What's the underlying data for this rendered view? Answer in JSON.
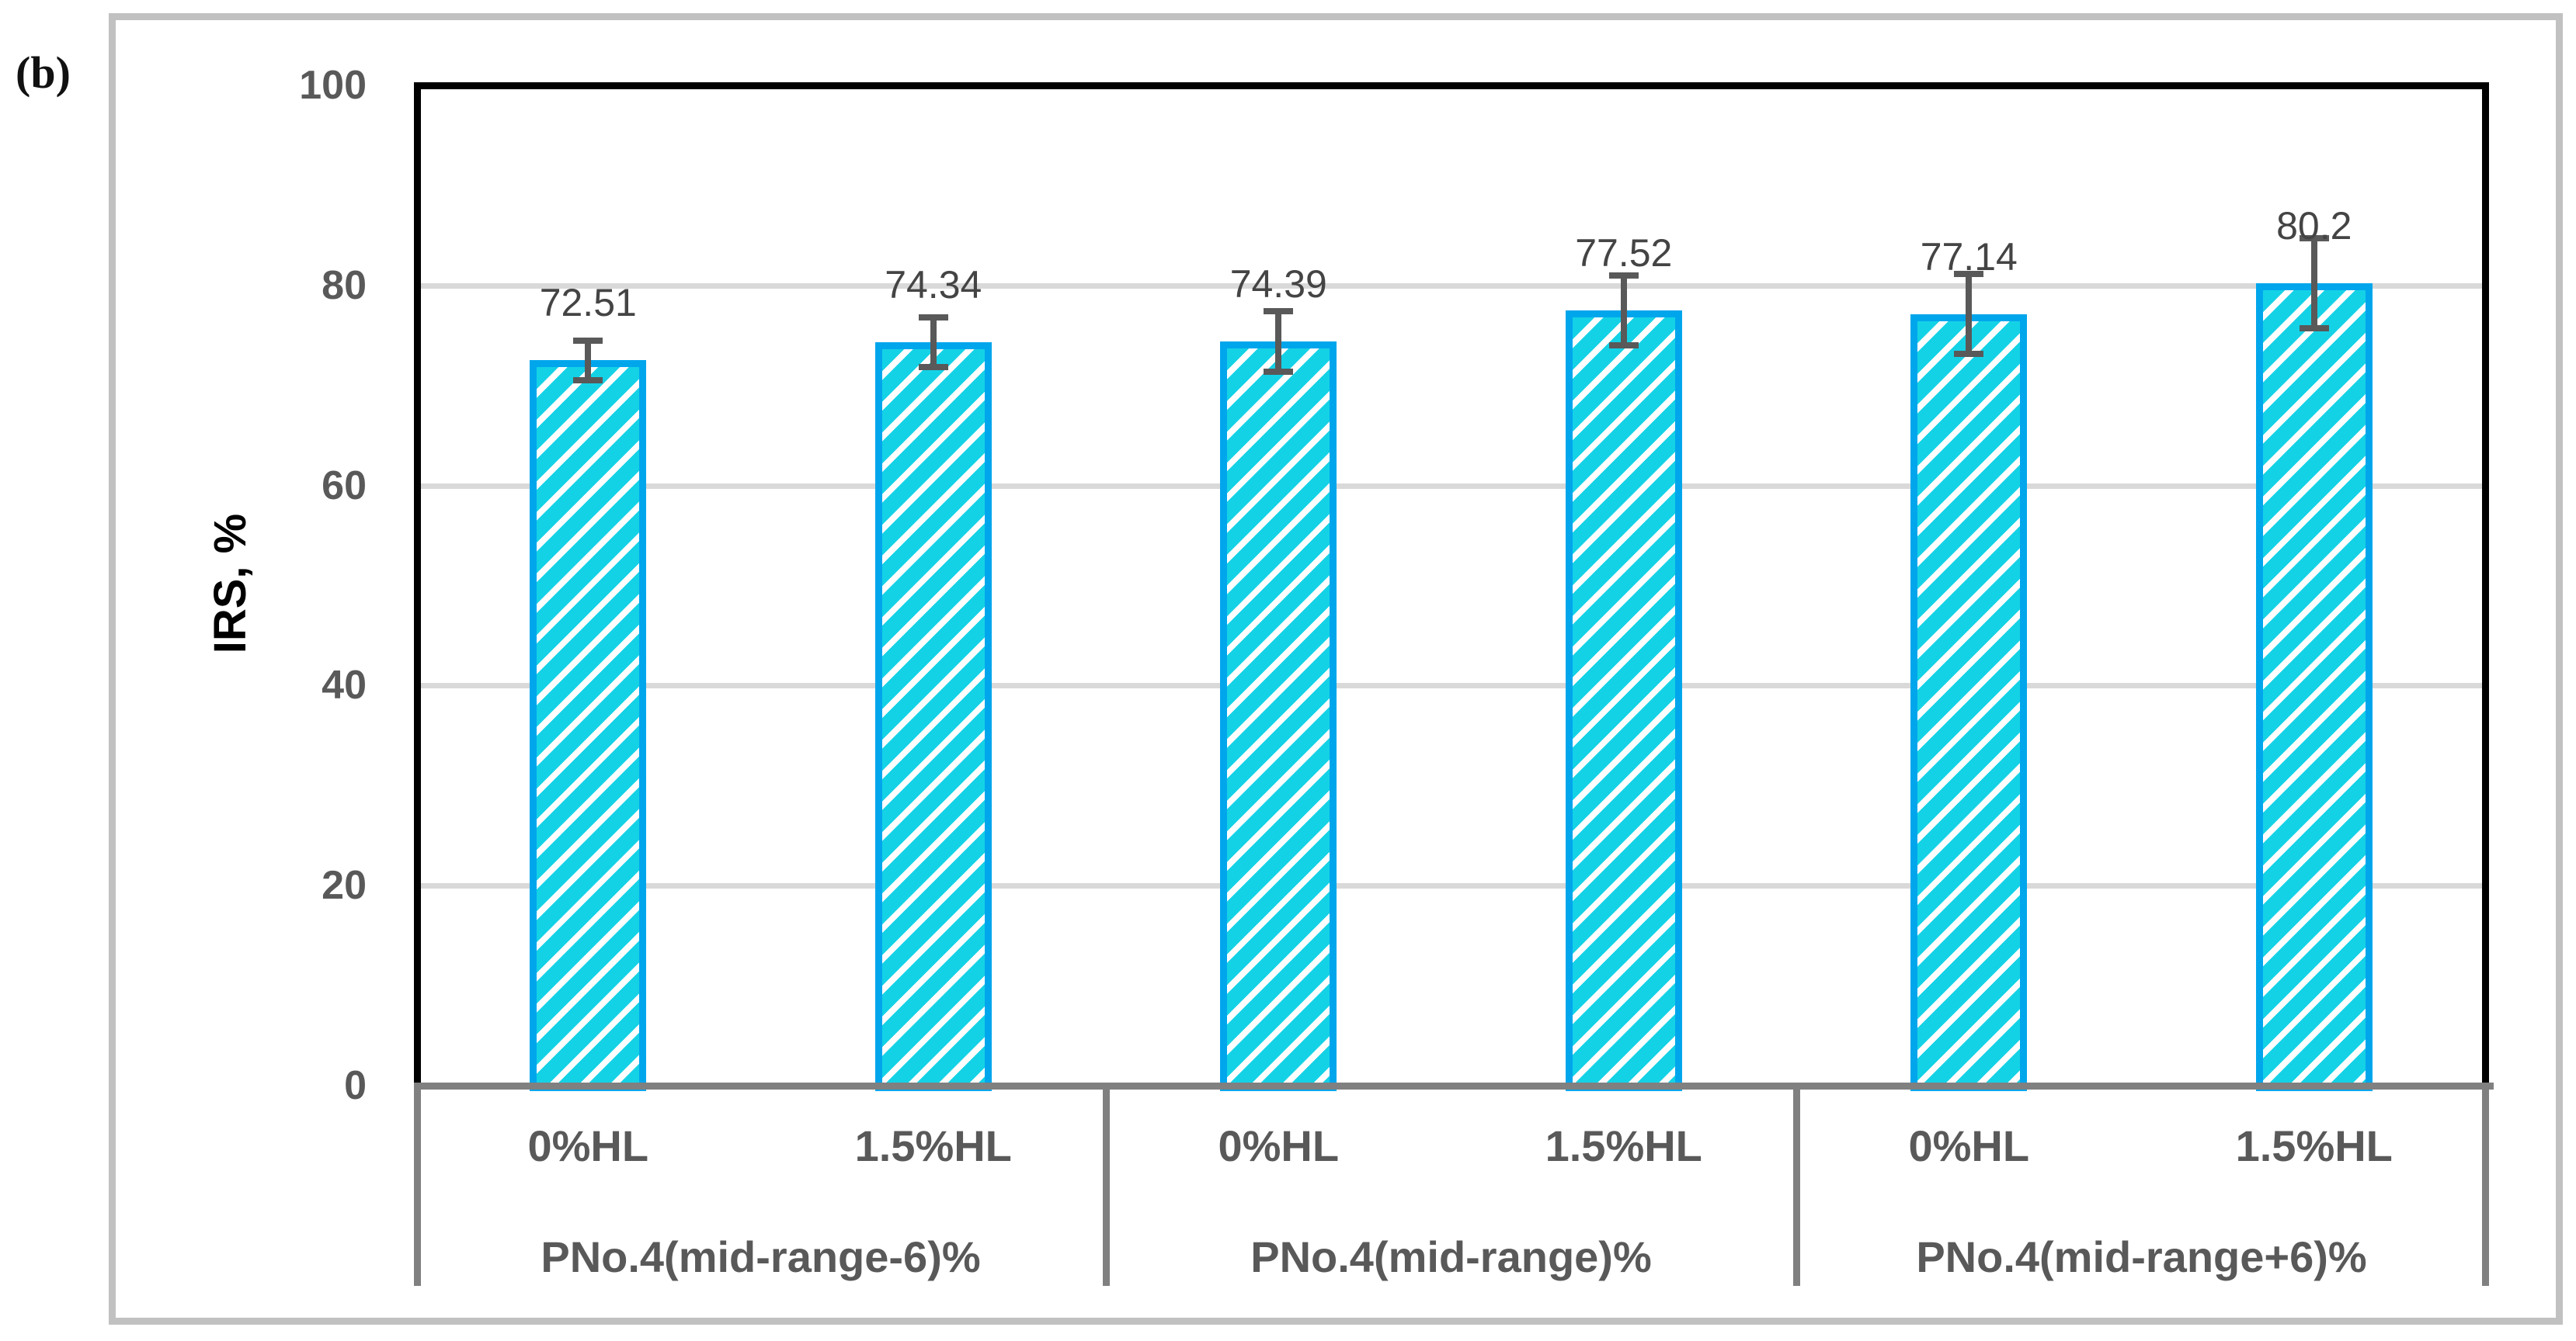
{
  "figure_label": "(b)",
  "chart_data": {
    "type": "bar",
    "title": "",
    "figure_label": "(b)",
    "ylabel": "IRS, %",
    "xlabel": "",
    "ylim": [
      0,
      100
    ],
    "yticks": [
      0,
      20,
      40,
      60,
      80,
      100
    ],
    "grid": "horizontal",
    "legend": "none",
    "categories": [
      "0%HL",
      "1.5%HL",
      "0%HL",
      "1.5%HL",
      "0%HL",
      "1.5%HL"
    ],
    "values": [
      72.51,
      74.34,
      74.39,
      77.52,
      77.14,
      80.2
    ],
    "value_labels": [
      "72.51",
      "74.34",
      "74.39",
      "77.52",
      "77.14",
      "80.2"
    ],
    "error_bars_estimated": [
      2.0,
      2.5,
      3.0,
      3.5,
      4.0,
      4.5
    ],
    "groups": [
      {
        "label": "PNo.4(mid-range-6)%",
        "bars": [
          {
            "category": "0%HL",
            "value": 72.51,
            "value_label": "72.51",
            "error_est": 2.0
          },
          {
            "category": "1.5%HL",
            "value": 74.34,
            "value_label": "74.34",
            "error_est": 2.5
          }
        ]
      },
      {
        "label": "PNo.4(mid-range)%",
        "bars": [
          {
            "category": "0%HL",
            "value": 74.39,
            "value_label": "74.39",
            "error_est": 3.0
          },
          {
            "category": "1.5%HL",
            "value": 77.52,
            "value_label": "77.52",
            "error_est": 3.5
          }
        ]
      },
      {
        "label": "PNo.4(mid-range+6)%",
        "bars": [
          {
            "category": "0%HL",
            "value": 77.14,
            "value_label": "77.14",
            "error_est": 4.0
          },
          {
            "category": "1.5%HL",
            "value": 80.2,
            "value_label": "80.2",
            "error_est": 4.5
          }
        ]
      }
    ],
    "bar_style": {
      "hatch": "diagonal-forward-slash",
      "hatch_color": "#14D2E6",
      "hatch_background": "#FFFFFF",
      "border_color": "#00A6EC"
    },
    "colors": {
      "gridline": "#D9D9D9",
      "category_axis_line": "#808080",
      "plot_border": "#000000",
      "tick_text": "#595959",
      "value_text": "#444444",
      "label_text": "#595959",
      "error_bar": "#595959",
      "figure_frame": "#C1C1C1"
    }
  }
}
